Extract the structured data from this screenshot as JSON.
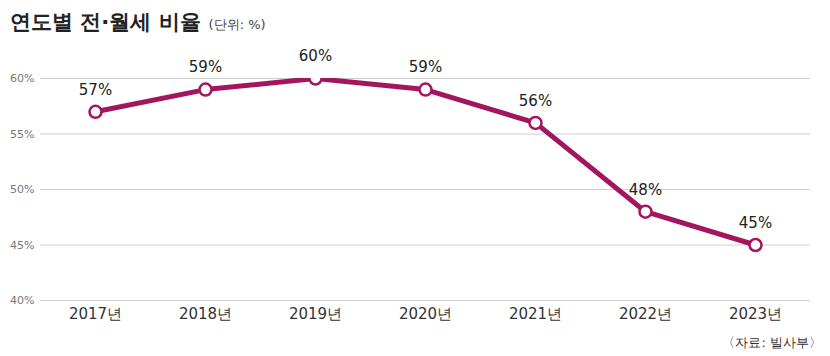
{
  "chart_data": {
    "type": "line",
    "title": "연도별 전·월세 비율",
    "subtitle": "(단위: %)",
    "source": "〈자료: 빌사부〉",
    "categories": [
      "2017년",
      "2018년",
      "2019년",
      "2020년",
      "2021년",
      "2022년",
      "2023년"
    ],
    "values": [
      57,
      59,
      60,
      59,
      56,
      48,
      45
    ],
    "value_labels": [
      "57%",
      "59%",
      "60%",
      "59%",
      "56%",
      "48%",
      "45%"
    ],
    "color": "#a3165f",
    "marker": "circle",
    "ylim": [
      40,
      60
    ],
    "yticks": [
      {
        "value": 40,
        "label": "40%"
      },
      {
        "value": 45,
        "label": "45%"
      },
      {
        "value": 50,
        "label": "50%"
      },
      {
        "value": 55,
        "label": "55%"
      },
      {
        "value": 60,
        "label": "60%"
      }
    ],
    "grid": true,
    "data_labels": true
  }
}
